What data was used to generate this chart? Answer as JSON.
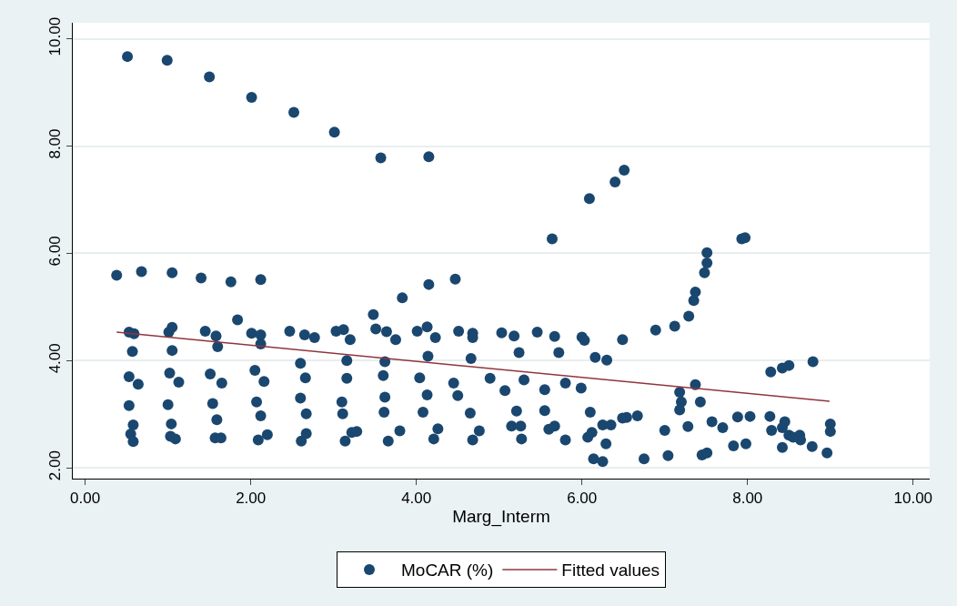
{
  "chart_data": {
    "type": "scatter",
    "xlabel": "Marg_Interm",
    "xlim": [
      -0.15,
      10.2
    ],
    "ylim": [
      1.8,
      10.3
    ],
    "xticks": [
      {
        "value": 0,
        "label": "0.00"
      },
      {
        "value": 2,
        "label": "2.00"
      },
      {
        "value": 4,
        "label": "4.00"
      },
      {
        "value": 6,
        "label": "6.00"
      },
      {
        "value": 8,
        "label": "8.00"
      },
      {
        "value": 10,
        "label": "10.00"
      }
    ],
    "yticks": [
      {
        "value": 2,
        "label": "2.00"
      },
      {
        "value": 4,
        "label": "4.00"
      },
      {
        "value": 6,
        "label": "6.00"
      },
      {
        "value": 8,
        "label": "8.00"
      },
      {
        "value": 10,
        "label": "10.00"
      }
    ],
    "grid": "y",
    "legend": "bottom",
    "marker": "circle",
    "series": [
      {
        "name": "MoCAR (%)",
        "color": "#1a476f",
        "x": [
          0.51,
          0.99,
          1.5,
          2.01,
          2.52,
          3.01,
          3.57,
          4.15,
          5.64,
          6.09,
          6.4,
          6.51,
          0.38,
          0.68,
          1.05,
          1.4,
          1.76,
          2.12,
          3.83,
          4.15,
          4.47,
          6.89,
          7.12,
          7.29,
          7.35,
          7.37,
          7.48,
          7.51,
          7.51,
          7.93,
          7.97,
          8.28,
          8.42,
          8.5,
          8.79,
          7.37,
          7.18,
          7.2,
          7.18,
          7.43,
          6.67,
          6.54,
          7.0,
          7.28,
          7.57,
          7.7,
          7.88,
          8.03,
          8.27,
          8.29,
          8.45,
          8.42,
          8.5,
          8.63,
          8.64,
          8.55,
          8.42,
          8.78,
          9.0,
          9.0,
          8.96,
          6.75,
          7.04,
          7.45,
          7.51,
          7.83,
          7.98,
          3.48,
          3.51,
          3.64,
          3.75,
          4.01,
          4.13,
          4.23,
          4.51,
          4.68,
          4.68,
          5.03,
          5.18,
          5.46,
          5.67,
          6.0,
          6.03,
          6.49,
          5.24,
          5.72,
          6.16,
          6.3,
          3.62,
          4.14,
          4.66,
          3.6,
          4.04,
          4.45,
          4.89,
          5.07,
          5.3,
          5.55,
          5.8,
          5.99,
          3.62,
          4.13,
          4.5,
          3.61,
          4.08,
          4.65,
          5.21,
          5.55,
          6.1,
          3.8,
          4.26,
          4.76,
          5.15,
          5.26,
          5.6,
          5.67,
          6.07,
          6.12,
          6.25,
          6.35,
          6.49,
          3.66,
          4.21,
          4.68,
          5.27,
          5.8,
          6.29,
          6.14,
          6.25,
          3.28,
          1.84,
          0.53,
          0.59,
          1.01,
          1.05,
          1.45,
          1.58,
          1.6,
          2.01,
          2.12,
          2.12,
          2.47,
          2.65,
          2.77,
          3.03,
          3.12,
          3.2,
          0.57,
          1.05,
          2.6,
          3.16,
          3.16,
          0.53,
          0.64,
          1.02,
          1.13,
          1.51,
          1.65,
          2.05,
          2.16,
          2.66,
          0.53,
          1.0,
          1.54,
          2.07,
          2.6,
          3.1,
          0.58,
          1.04,
          1.59,
          2.12,
          2.67,
          3.11,
          0.55,
          0.58,
          1.03,
          1.09,
          1.57,
          1.64,
          2.09,
          2.2,
          2.61,
          2.67,
          3.14,
          3.22
        ],
        "values": [
          9.67,
          9.6,
          9.29,
          8.91,
          8.63,
          8.26,
          7.78,
          7.8,
          6.27,
          7.02,
          7.33,
          7.55,
          5.59,
          5.66,
          5.64,
          5.54,
          5.47,
          5.51,
          5.17,
          5.42,
          5.52,
          4.57,
          4.64,
          4.83,
          5.12,
          5.28,
          5.64,
          5.82,
          6.01,
          6.27,
          6.29,
          3.79,
          3.86,
          3.91,
          3.98,
          3.55,
          3.41,
          3.23,
          3.08,
          3.23,
          2.97,
          2.94,
          2.7,
          2.77,
          2.86,
          2.75,
          2.95,
          2.96,
          2.96,
          2.7,
          2.86,
          2.75,
          2.61,
          2.61,
          2.52,
          2.57,
          2.38,
          2.4,
          2.82,
          2.68,
          2.28,
          2.17,
          2.23,
          2.24,
          2.28,
          2.41,
          2.45,
          4.86,
          4.59,
          4.54,
          4.39,
          4.55,
          4.63,
          4.43,
          4.55,
          4.51,
          4.43,
          4.52,
          4.46,
          4.53,
          4.45,
          4.44,
          4.38,
          4.39,
          4.15,
          4.15,
          4.06,
          4.01,
          3.98,
          4.08,
          4.04,
          3.72,
          3.68,
          3.58,
          3.67,
          3.44,
          3.64,
          3.46,
          3.58,
          3.49,
          3.32,
          3.36,
          3.35,
          3.04,
          3.04,
          3.02,
          3.06,
          3.07,
          3.04,
          2.69,
          2.73,
          2.69,
          2.78,
          2.78,
          2.72,
          2.78,
          2.57,
          2.66,
          2.8,
          2.8,
          2.93,
          2.5,
          2.54,
          2.52,
          2.54,
          2.52,
          2.45,
          2.17,
          2.12,
          2.68,
          4.76,
          4.53,
          4.5,
          4.53,
          4.62,
          4.55,
          4.46,
          4.26,
          4.51,
          4.48,
          4.31,
          4.55,
          4.48,
          4.43,
          4.55,
          4.58,
          4.39,
          4.17,
          4.19,
          3.95,
          4.0,
          3.67,
          3.7,
          3.56,
          3.77,
          3.6,
          3.75,
          3.58,
          3.82,
          3.61,
          3.68,
          3.16,
          3.18,
          3.2,
          3.23,
          3.3,
          3.23,
          2.8,
          2.82,
          2.9,
          2.97,
          3.01,
          3.01,
          2.63,
          2.49,
          2.59,
          2.54,
          2.56,
          2.56,
          2.52,
          2.62,
          2.5,
          2.64,
          2.5,
          2.66
        ]
      },
      {
        "name": "Fitted values",
        "type": "line",
        "color": "#90353b",
        "marker": "none",
        "x": [
          0.38,
          8.99
        ],
        "values": [
          4.53,
          3.24
        ]
      }
    ]
  }
}
